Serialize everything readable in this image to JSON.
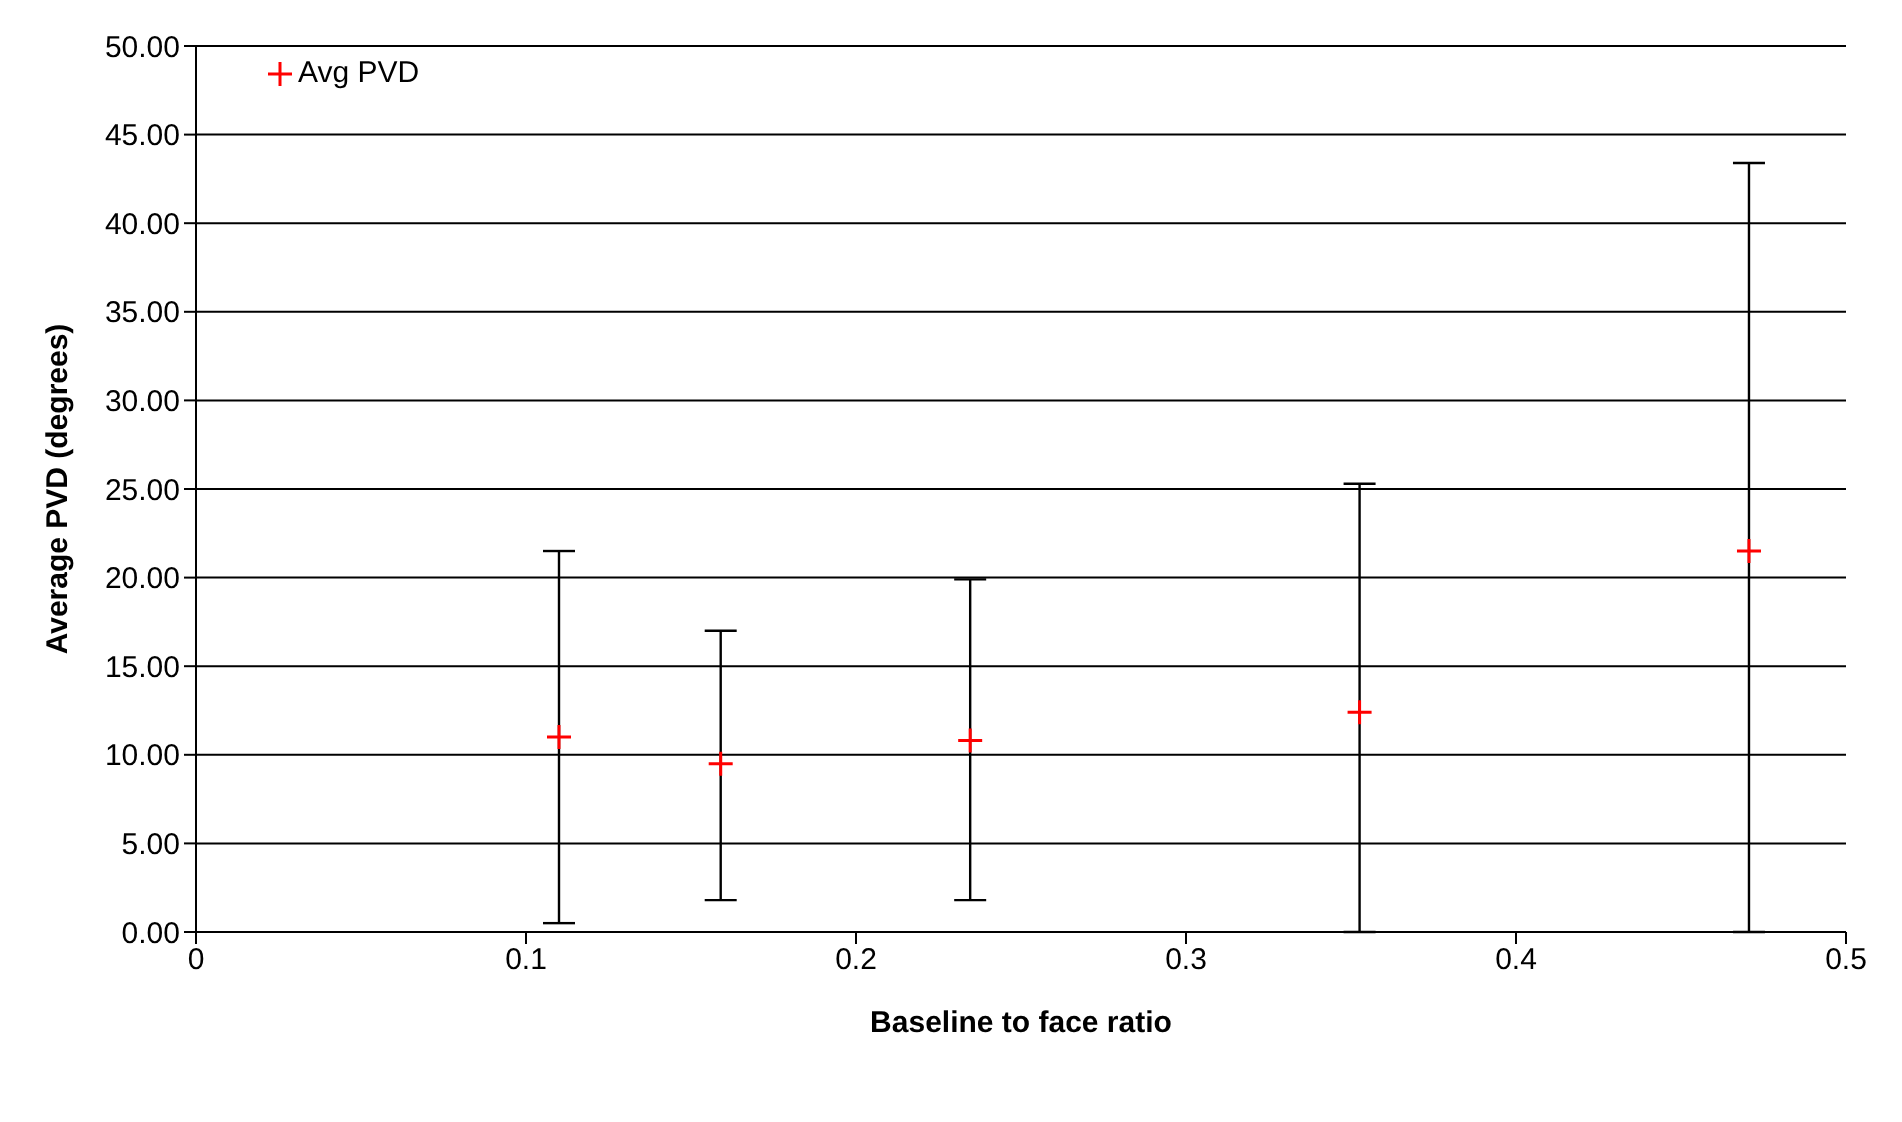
{
  "chart_data": {
    "type": "scatter",
    "xlabel": "Baseline to face ratio",
    "ylabel": "Average PVD (degrees)",
    "x": [
      0.11,
      0.159,
      0.2346,
      0.3526,
      0.4706
    ],
    "series": [
      {
        "name": "Avg PVD",
        "color": "#ff0000",
        "values": [
          11.0,
          9.5,
          10.8,
          12.4,
          21.5
        ],
        "errors": [
          [
            0.5,
            21.5
          ],
          [
            1.8,
            17.0
          ],
          [
            1.8,
            19.9
          ],
          [
            0,
            25.3
          ],
          [
            0,
            43.4
          ]
        ]
      }
    ],
    "xlim": [
      0,
      0.5
    ],
    "xticks": [
      0,
      0.1,
      0.2,
      0.3,
      0.4,
      0.5
    ],
    "ylim": [
      0,
      50
    ],
    "yticks": [
      {
        "value": 0,
        "label": "0.00"
      },
      {
        "value": 5,
        "label": "5.00"
      },
      {
        "value": 10,
        "label": "10.00"
      },
      {
        "value": 15,
        "label": "15.00"
      },
      {
        "value": 20,
        "label": "20.00"
      },
      {
        "value": 25,
        "label": "25.00"
      },
      {
        "value": 30,
        "label": "30.00"
      },
      {
        "value": 35,
        "label": "35.00"
      },
      {
        "value": 40,
        "label": "40.00"
      },
      {
        "value": 45,
        "label": "45.00"
      },
      {
        "value": 50,
        "label": "50.00"
      }
    ],
    "grid": "y",
    "legend": "top left",
    "marker": "cross"
  }
}
